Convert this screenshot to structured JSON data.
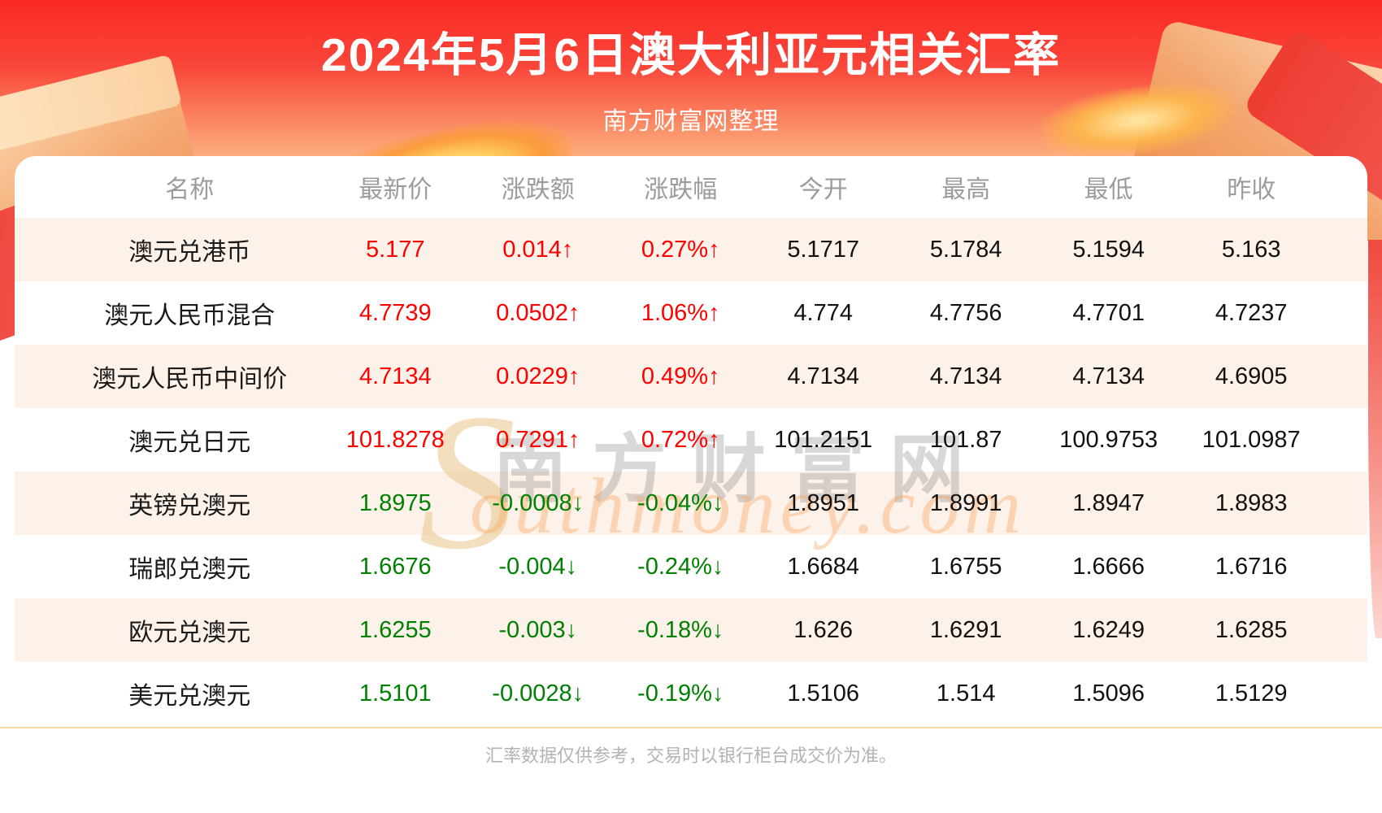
{
  "header": {
    "title": "2024年5月6日澳大利亚元相关汇率",
    "subtitle": "南方财富网整理"
  },
  "watermark": {
    "initial": "S",
    "cn": "南方财富网",
    "en": "outhmoney.com"
  },
  "footer": {
    "note": "汇率数据仅供参考，交易时以银行柜台成交价为准。"
  },
  "colors": {
    "banner-red": "#fb2a22",
    "banner-orange": "#fcae80",
    "up": "#fe0000",
    "down": "#008000",
    "header-text": "#9c9c9c",
    "cell-text": "#111111",
    "row-stripe": "#fdf2ea",
    "divider": "#f7d6a5",
    "footnote-text": "#b3b3b3"
  },
  "chart_data": {
    "type": "table",
    "title": "2024年5月6日澳大利亚元相关汇率",
    "columns": [
      {
        "key": "name",
        "label": "名称"
      },
      {
        "key": "last",
        "label": "最新价"
      },
      {
        "key": "change",
        "label": "涨跌额"
      },
      {
        "key": "change_pct",
        "label": "涨跌幅"
      },
      {
        "key": "open",
        "label": "今开"
      },
      {
        "key": "high",
        "label": "最高"
      },
      {
        "key": "low",
        "label": "最低"
      },
      {
        "key": "prev_close",
        "label": "昨收"
      }
    ],
    "rows": [
      {
        "name": "澳元兑港币",
        "last": "5.177",
        "change": "0.014",
        "change_pct": "0.27%",
        "open": "5.1717",
        "high": "5.1784",
        "low": "5.1594",
        "prev_close": "5.163",
        "direction": "up",
        "arrow": "↑"
      },
      {
        "name": "澳元人民币混合",
        "last": "4.7739",
        "change": "0.0502",
        "change_pct": "1.06%",
        "open": "4.774",
        "high": "4.7756",
        "low": "4.7701",
        "prev_close": "4.7237",
        "direction": "up",
        "arrow": "↑"
      },
      {
        "name": "澳元人民币中间价",
        "last": "4.7134",
        "change": "0.0229",
        "change_pct": "0.49%",
        "open": "4.7134",
        "high": "4.7134",
        "low": "4.7134",
        "prev_close": "4.6905",
        "direction": "up",
        "arrow": "↑"
      },
      {
        "name": "澳元兑日元",
        "last": "101.8278",
        "change": "0.7291",
        "change_pct": "0.72%",
        "open": "101.2151",
        "high": "101.87",
        "low": "100.9753",
        "prev_close": "101.0987",
        "direction": "up",
        "arrow": "↑"
      },
      {
        "name": "英镑兑澳元",
        "last": "1.8975",
        "change": "-0.0008",
        "change_pct": "-0.04%",
        "open": "1.8951",
        "high": "1.8991",
        "low": "1.8947",
        "prev_close": "1.8983",
        "direction": "down",
        "arrow": "↓"
      },
      {
        "name": "瑞郎兑澳元",
        "last": "1.6676",
        "change": "-0.004",
        "change_pct": "-0.24%",
        "open": "1.6684",
        "high": "1.6755",
        "low": "1.6666",
        "prev_close": "1.6716",
        "direction": "down",
        "arrow": "↓"
      },
      {
        "name": "欧元兑澳元",
        "last": "1.6255",
        "change": "-0.003",
        "change_pct": "-0.18%",
        "open": "1.626",
        "high": "1.6291",
        "low": "1.6249",
        "prev_close": "1.6285",
        "direction": "down",
        "arrow": "↓"
      },
      {
        "name": "美元兑澳元",
        "last": "1.5101",
        "change": "-0.0028",
        "change_pct": "-0.19%",
        "open": "1.5106",
        "high": "1.514",
        "low": "1.5096",
        "prev_close": "1.5129",
        "direction": "down",
        "arrow": "↓"
      }
    ]
  }
}
